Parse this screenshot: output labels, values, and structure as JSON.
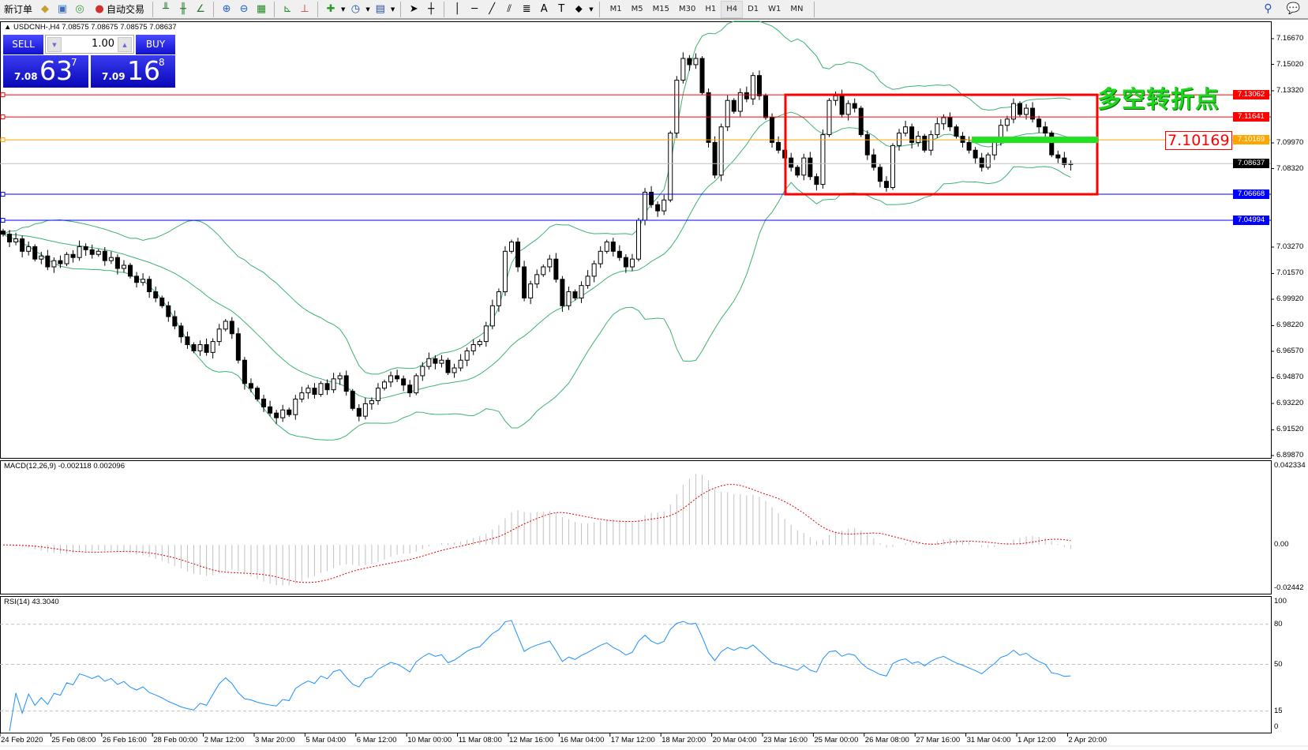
{
  "toolbar": {
    "new_order": "新订单",
    "auto_trading": "自动交易",
    "timeframes": [
      "M1",
      "M5",
      "M15",
      "M30",
      "H1",
      "H4",
      "D1",
      "W1",
      "MN"
    ],
    "active_timeframe": "H4",
    "icons": [
      "history-center-icon",
      "strategy-tester-icon",
      "signals-icon",
      "autotrading-icon",
      "bar-chart-icon",
      "candlestick-icon",
      "line-chart-icon",
      "zoom-in-icon",
      "zoom-out-icon",
      "tile-windows-icon",
      "auto-scroll-icon",
      "chart-shift-icon",
      "indicators-icon",
      "periods-icon",
      "templates-icon",
      "cursor-icon",
      "crosshair-icon",
      "vertical-line-icon",
      "horizontal-line-icon",
      "trendline-icon",
      "equidistant-channel-icon",
      "fibonacci-icon",
      "text-icon",
      "text-label-icon",
      "arrows-icon",
      "search-icon",
      "chat-icon"
    ]
  },
  "chart": {
    "header": "USDCNH-,H4  7.08575 7.08675 7.08575 7.08637",
    "trade_panel": {
      "sell_label": "SELL",
      "buy_label": "BUY",
      "lot": "1.00",
      "sell_small": "7.08",
      "sell_big": "63",
      "sell_sup": "7",
      "buy_small": "7.09",
      "buy_big": "16",
      "buy_sup": "8"
    },
    "annotation": "多空转折点",
    "annotation_color": "#1ed61e",
    "float_label": "7.10169",
    "price_axis": [
      "7.16670",
      "7.15020",
      "7.13320",
      "7.09970",
      "7.08320",
      "7.03270",
      "7.01570",
      "6.99920",
      "6.98220",
      "6.96570",
      "6.94870",
      "6.93220",
      "6.91520",
      "6.89870"
    ],
    "price_range": [
      6.8987,
      7.1667
    ],
    "levels": [
      {
        "price": 7.13062,
        "label": "7.13062",
        "color": "#ff0000"
      },
      {
        "price": 7.11641,
        "label": "7.11641",
        "color": "#ff0000"
      },
      {
        "price": 7.10169,
        "label": "7.10169",
        "color": "#ffa500"
      },
      {
        "price": 7.08637,
        "label": "7.08637",
        "color": "#000000"
      },
      {
        "price": 7.06668,
        "label": "7.06668",
        "color": "#0000ff"
      },
      {
        "price": 7.04994,
        "label": "7.04994",
        "color": "#0000ff"
      }
    ],
    "rect_zone": {
      "price_top": 7.13062,
      "price_bottom": 7.06668,
      "color": "#ff0000"
    },
    "green_bar_price": 7.10169
  },
  "macd": {
    "title": "MACD(12,26,9) -0.002118 0.002096",
    "axis": [
      "0.042334",
      "0.00",
      "-0.02442"
    ],
    "range": [
      -0.02442,
      0.042334
    ]
  },
  "rsi": {
    "title": "RSI(14) 43.3040",
    "axis": [
      "100",
      "80",
      "50",
      "15",
      "0"
    ],
    "levels": [
      80,
      50,
      15
    ]
  },
  "time_axis": [
    "24 Feb 2020",
    "25 Feb 08:00",
    "26 Feb 16:00",
    "28 Feb 00:00",
    "2 Mar 12:00",
    "3 Mar 20:00",
    "5 Mar 04:00",
    "6 Mar 12:00",
    "10 Mar 00:00",
    "11 Mar 08:00",
    "12 Mar 16:00",
    "16 Mar 04:00",
    "17 Mar 12:00",
    "18 Mar 20:00",
    "20 Mar 04:00",
    "23 Mar 16:00",
    "25 Mar 00:00",
    "26 Mar 08:00",
    "27 Mar 16:00",
    "31 Mar 04:00",
    "1 Apr 12:00",
    "2 Apr 20:00"
  ],
  "chart_data": {
    "type": "candlestick",
    "symbol": "USDCNH-",
    "timeframe": "H4",
    "closes": [
      7.041,
      7.036,
      7.038,
      7.03,
      7.033,
      7.025,
      7.027,
      7.02,
      7.024,
      7.022,
      7.028,
      7.026,
      7.033,
      7.031,
      7.028,
      7.03,
      7.024,
      7.026,
      7.019,
      7.021,
      7.014,
      7.01,
      7.012,
      7.004,
      7.0,
      6.995,
      6.988,
      6.982,
      6.975,
      6.97,
      6.966,
      6.97,
      6.965,
      6.972,
      6.98,
      6.985,
      6.977,
      6.96,
      6.945,
      6.942,
      6.935,
      6.93,
      6.926,
      6.923,
      6.928,
      6.925,
      6.935,
      6.939,
      6.942,
      6.938,
      6.945,
      6.941,
      6.948,
      6.95,
      6.94,
      6.929,
      6.924,
      6.932,
      6.934,
      6.942,
      6.946,
      6.95,
      6.948,
      6.944,
      6.939,
      6.95,
      6.956,
      6.961,
      6.958,
      6.96,
      6.952,
      6.955,
      6.96,
      6.966,
      6.97,
      6.972,
      6.982,
      6.995,
      7.004,
      7.03,
      7.036,
      7.02,
      7.0,
      7.009,
      7.015,
      7.02,
      7.025,
      7.012,
      6.995,
      7.004,
      7.0,
      7.008,
      7.014,
      7.022,
      7.03,
      7.036,
      7.03,
      7.026,
      7.02,
      7.025,
      7.05,
      7.068,
      7.06,
      7.056,
      7.063,
      7.106,
      7.14,
      7.154,
      7.15,
      7.154,
      7.132,
      7.1,
      7.079,
      7.11,
      7.127,
      7.12,
      7.132,
      7.128,
      7.143,
      7.13,
      7.116,
      7.1,
      7.095,
      7.09,
      7.084,
      7.079,
      7.09,
      7.078,
      7.073,
      7.105,
      7.127,
      7.13,
      7.118,
      7.125,
      7.122,
      7.105,
      7.092,
      7.084,
      7.075,
      7.071,
      7.098,
      7.106,
      7.11,
      7.1,
      7.104,
      7.095,
      7.105,
      7.112,
      7.116,
      7.11,
      7.104,
      7.1,
      7.095,
      7.09,
      7.084,
      7.092,
      7.1,
      7.111,
      7.115,
      7.125,
      7.118,
      7.122,
      7.115,
      7.11,
      7.106,
      7.092,
      7.09,
      7.0858,
      7.0864
    ]
  }
}
